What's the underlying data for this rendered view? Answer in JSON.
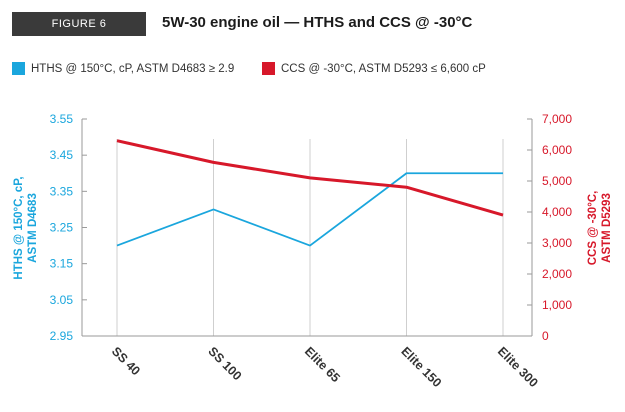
{
  "figure_tag": "FIGURE 6",
  "title": "5W-30 engine oil — HTHS and CCS @ -30°C",
  "colors": {
    "hths": "#1aa6dd",
    "ccs": "#d7182a",
    "grid": "#cfcfcf",
    "axis": "#9a9a9a",
    "tag_bg": "#3a3a3a"
  },
  "chart_data": {
    "type": "line",
    "categories": [
      "SS 40",
      "SS 100",
      "Elite 65",
      "Elite 150",
      "Elite 300"
    ],
    "series": [
      {
        "name": "HTHS @ 150°C, cP, ASTM D4683 ≥ 2.9",
        "axis": "left",
        "values": [
          3.2,
          3.3,
          3.2,
          3.4,
          3.4
        ]
      },
      {
        "name": "CCS @ -30°C, ASTM D5293 ≤ 6,600 cP",
        "axis": "right",
        "values": [
          6300,
          5600,
          5100,
          4800,
          3900
        ]
      }
    ],
    "left_axis": {
      "label": "HTHS @ 150°C, cP,\nASTM D4683",
      "ylim": [
        2.95,
        3.55
      ],
      "ticks": [
        "3.55",
        "3.45",
        "3.35",
        "3.25",
        "3.15",
        "3.05",
        "2.95"
      ]
    },
    "right_axis": {
      "label": "CCS @ -30°C,\nASTM D5293",
      "ylim": [
        0,
        7000
      ],
      "ticks": [
        "7,000",
        "6,000",
        "5,000",
        "4,000",
        "3,000",
        "2,000",
        "1,000",
        "0"
      ]
    },
    "grid": "vertical",
    "legend_position": "top"
  }
}
